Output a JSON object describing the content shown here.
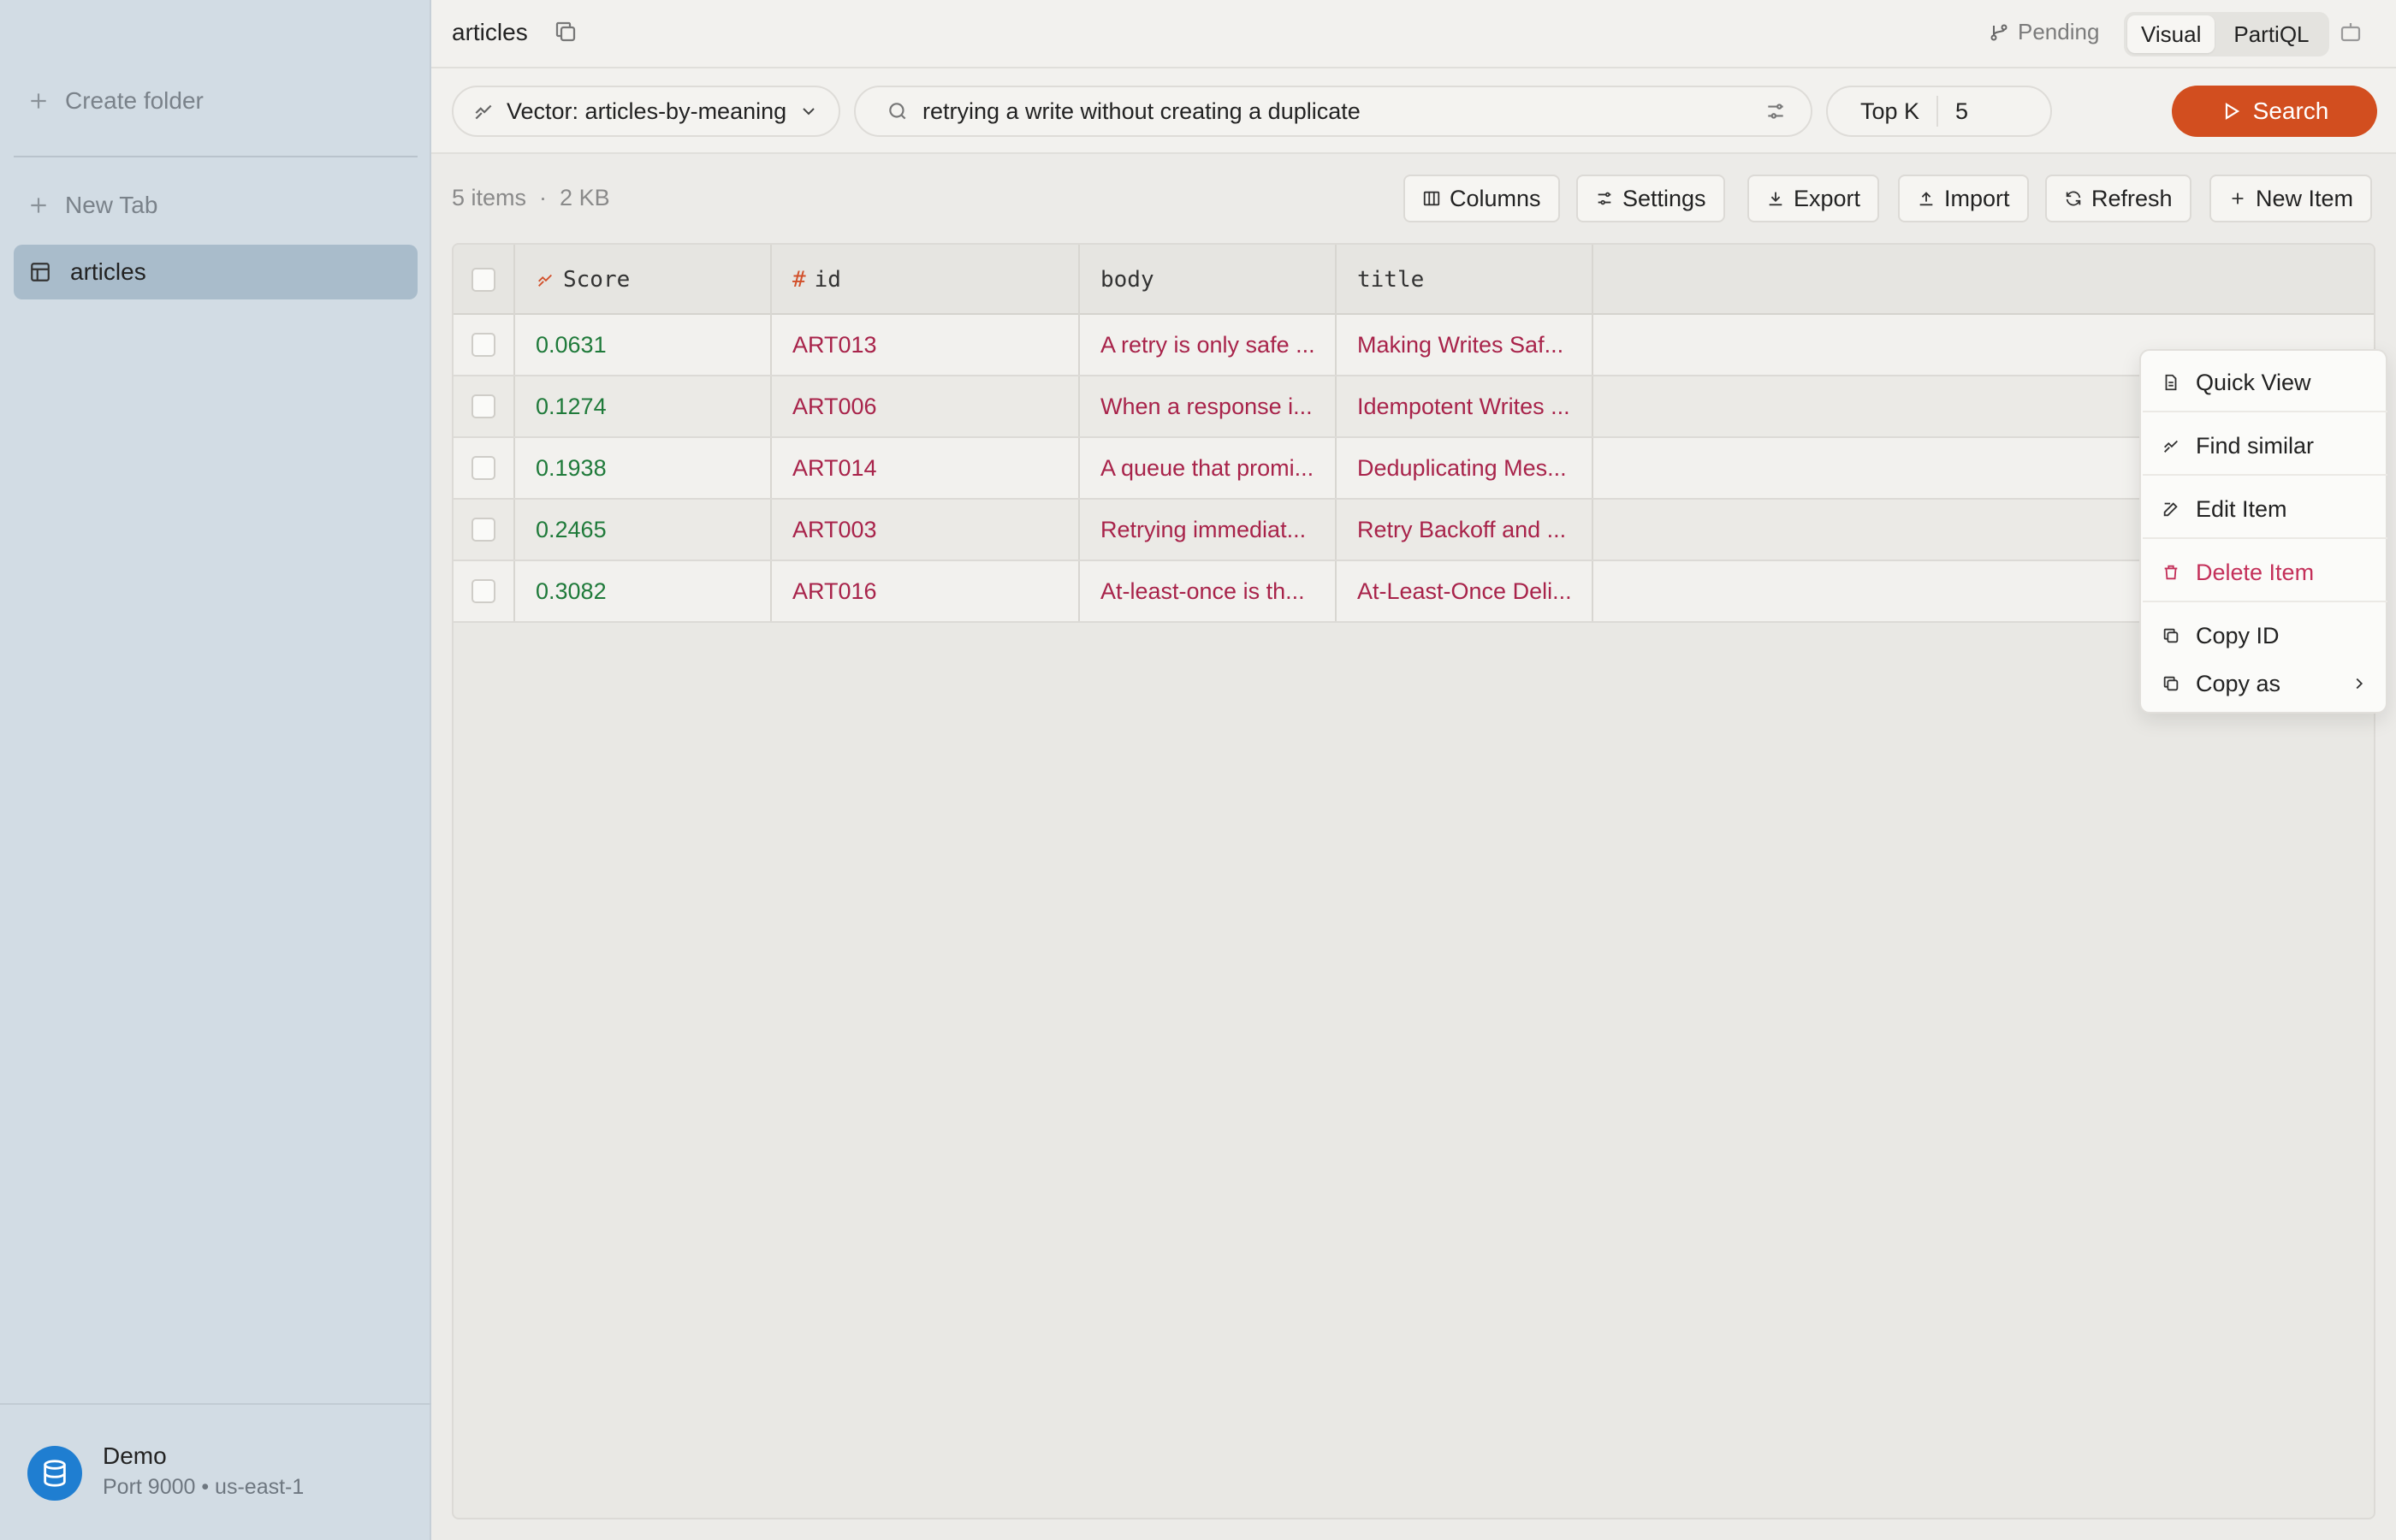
{
  "sidebar": {
    "create_folder": "Create folder",
    "new_tab": "New Tab",
    "active_table": "articles",
    "connection": {
      "name": "Demo",
      "details": "Port 9000 • us-east-1"
    }
  },
  "header": {
    "title": "articles",
    "pending": "Pending",
    "modes": [
      "Visual",
      "PartiQL"
    ],
    "active_mode": "Visual"
  },
  "search": {
    "index": "Vector: articles-by-meaning",
    "query": "retrying a write without creating a duplicate",
    "topk_label": "Top K",
    "topk_value": "5",
    "button": "Search"
  },
  "results": {
    "count": "5 items",
    "size": "2 KB",
    "actions": [
      "Columns",
      "Settings",
      "Export",
      "Import",
      "Refresh",
      "New Item"
    ]
  },
  "table": {
    "columns": [
      "Score",
      "id",
      "body",
      "title"
    ],
    "rows": [
      {
        "score": "0.0631",
        "id": "ART013",
        "body": "A retry is only safe ...",
        "title": "Making Writes Saf..."
      },
      {
        "score": "0.1274",
        "id": "ART006",
        "body": "When a response i...",
        "title": "Idempotent Writes ..."
      },
      {
        "score": "0.1938",
        "id": "ART014",
        "body": "A queue that promi...",
        "title": "Deduplicating Mes..."
      },
      {
        "score": "0.2465",
        "id": "ART003",
        "body": "Retrying immediat...",
        "title": "Retry Backoff and ..."
      },
      {
        "score": "0.3082",
        "id": "ART016",
        "body": "At-least-once is th...",
        "title": "At-Least-Once Deli..."
      }
    ]
  },
  "context_menu": {
    "items": [
      "Quick View",
      "Find similar",
      "Edit Item",
      "Delete Item",
      "Copy ID",
      "Copy as"
    ]
  },
  "colors": {
    "accent": "#d24e1f",
    "score_text": "#1f7a3a",
    "string_text": "#a8234a",
    "danger": "#c4305a",
    "sidebar_bg": "#d2dce4"
  }
}
